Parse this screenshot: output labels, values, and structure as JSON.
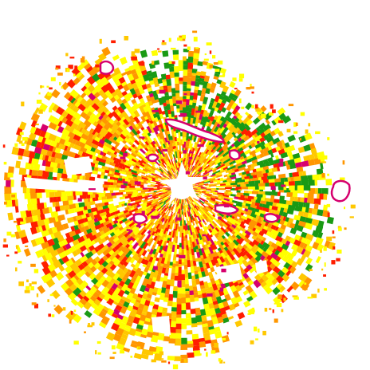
{
  "radar": {
    "product": "reflectivity-ppi",
    "palette": {
      "green": "#1a9a14",
      "yellow": "#ffff00",
      "gold": "#ffc800",
      "orange": "#ff9600",
      "red": "#ff1e00",
      "magenta": "#d6006e",
      "background": "#ffffff"
    },
    "mix": {
      "green": 0.06,
      "yellow": 0.24,
      "gold": 0.26,
      "orange": 0.24,
      "red": 0.17,
      "magenta": 0.03
    },
    "echo_coverage": 0.82
  }
}
